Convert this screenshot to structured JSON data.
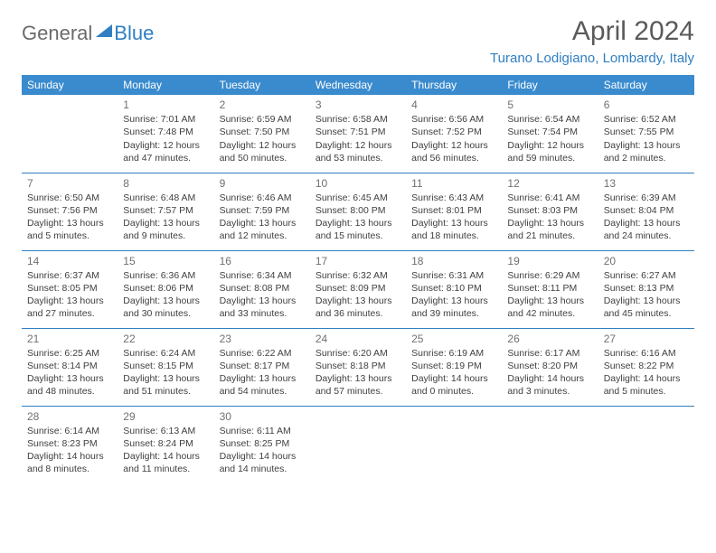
{
  "logo": {
    "part1": "General",
    "part2": "Blue"
  },
  "title": "April 2024",
  "location": "Turano Lodigiano, Lombardy, Italy",
  "colors": {
    "header_bg": "#3a8bce",
    "accent": "#2f7fc2",
    "text": "#3f3f3f",
    "muted": "#707070",
    "logo_gray": "#6b6b6b"
  },
  "weekdays": [
    "Sunday",
    "Monday",
    "Tuesday",
    "Wednesday",
    "Thursday",
    "Friday",
    "Saturday"
  ],
  "weeks": [
    [
      null,
      {
        "n": "1",
        "sr": "Sunrise: 7:01 AM",
        "ss": "Sunset: 7:48 PM",
        "d1": "Daylight: 12 hours",
        "d2": "and 47 minutes."
      },
      {
        "n": "2",
        "sr": "Sunrise: 6:59 AM",
        "ss": "Sunset: 7:50 PM",
        "d1": "Daylight: 12 hours",
        "d2": "and 50 minutes."
      },
      {
        "n": "3",
        "sr": "Sunrise: 6:58 AM",
        "ss": "Sunset: 7:51 PM",
        "d1": "Daylight: 12 hours",
        "d2": "and 53 minutes."
      },
      {
        "n": "4",
        "sr": "Sunrise: 6:56 AM",
        "ss": "Sunset: 7:52 PM",
        "d1": "Daylight: 12 hours",
        "d2": "and 56 minutes."
      },
      {
        "n": "5",
        "sr": "Sunrise: 6:54 AM",
        "ss": "Sunset: 7:54 PM",
        "d1": "Daylight: 12 hours",
        "d2": "and 59 minutes."
      },
      {
        "n": "6",
        "sr": "Sunrise: 6:52 AM",
        "ss": "Sunset: 7:55 PM",
        "d1": "Daylight: 13 hours",
        "d2": "and 2 minutes."
      }
    ],
    [
      {
        "n": "7",
        "sr": "Sunrise: 6:50 AM",
        "ss": "Sunset: 7:56 PM",
        "d1": "Daylight: 13 hours",
        "d2": "and 5 minutes."
      },
      {
        "n": "8",
        "sr": "Sunrise: 6:48 AM",
        "ss": "Sunset: 7:57 PM",
        "d1": "Daylight: 13 hours",
        "d2": "and 9 minutes."
      },
      {
        "n": "9",
        "sr": "Sunrise: 6:46 AM",
        "ss": "Sunset: 7:59 PM",
        "d1": "Daylight: 13 hours",
        "d2": "and 12 minutes."
      },
      {
        "n": "10",
        "sr": "Sunrise: 6:45 AM",
        "ss": "Sunset: 8:00 PM",
        "d1": "Daylight: 13 hours",
        "d2": "and 15 minutes."
      },
      {
        "n": "11",
        "sr": "Sunrise: 6:43 AM",
        "ss": "Sunset: 8:01 PM",
        "d1": "Daylight: 13 hours",
        "d2": "and 18 minutes."
      },
      {
        "n": "12",
        "sr": "Sunrise: 6:41 AM",
        "ss": "Sunset: 8:03 PM",
        "d1": "Daylight: 13 hours",
        "d2": "and 21 minutes."
      },
      {
        "n": "13",
        "sr": "Sunrise: 6:39 AM",
        "ss": "Sunset: 8:04 PM",
        "d1": "Daylight: 13 hours",
        "d2": "and 24 minutes."
      }
    ],
    [
      {
        "n": "14",
        "sr": "Sunrise: 6:37 AM",
        "ss": "Sunset: 8:05 PM",
        "d1": "Daylight: 13 hours",
        "d2": "and 27 minutes."
      },
      {
        "n": "15",
        "sr": "Sunrise: 6:36 AM",
        "ss": "Sunset: 8:06 PM",
        "d1": "Daylight: 13 hours",
        "d2": "and 30 minutes."
      },
      {
        "n": "16",
        "sr": "Sunrise: 6:34 AM",
        "ss": "Sunset: 8:08 PM",
        "d1": "Daylight: 13 hours",
        "d2": "and 33 minutes."
      },
      {
        "n": "17",
        "sr": "Sunrise: 6:32 AM",
        "ss": "Sunset: 8:09 PM",
        "d1": "Daylight: 13 hours",
        "d2": "and 36 minutes."
      },
      {
        "n": "18",
        "sr": "Sunrise: 6:31 AM",
        "ss": "Sunset: 8:10 PM",
        "d1": "Daylight: 13 hours",
        "d2": "and 39 minutes."
      },
      {
        "n": "19",
        "sr": "Sunrise: 6:29 AM",
        "ss": "Sunset: 8:11 PM",
        "d1": "Daylight: 13 hours",
        "d2": "and 42 minutes."
      },
      {
        "n": "20",
        "sr": "Sunrise: 6:27 AM",
        "ss": "Sunset: 8:13 PM",
        "d1": "Daylight: 13 hours",
        "d2": "and 45 minutes."
      }
    ],
    [
      {
        "n": "21",
        "sr": "Sunrise: 6:25 AM",
        "ss": "Sunset: 8:14 PM",
        "d1": "Daylight: 13 hours",
        "d2": "and 48 minutes."
      },
      {
        "n": "22",
        "sr": "Sunrise: 6:24 AM",
        "ss": "Sunset: 8:15 PM",
        "d1": "Daylight: 13 hours",
        "d2": "and 51 minutes."
      },
      {
        "n": "23",
        "sr": "Sunrise: 6:22 AM",
        "ss": "Sunset: 8:17 PM",
        "d1": "Daylight: 13 hours",
        "d2": "and 54 minutes."
      },
      {
        "n": "24",
        "sr": "Sunrise: 6:20 AM",
        "ss": "Sunset: 8:18 PM",
        "d1": "Daylight: 13 hours",
        "d2": "and 57 minutes."
      },
      {
        "n": "25",
        "sr": "Sunrise: 6:19 AM",
        "ss": "Sunset: 8:19 PM",
        "d1": "Daylight: 14 hours",
        "d2": "and 0 minutes."
      },
      {
        "n": "26",
        "sr": "Sunrise: 6:17 AM",
        "ss": "Sunset: 8:20 PM",
        "d1": "Daylight: 14 hours",
        "d2": "and 3 minutes."
      },
      {
        "n": "27",
        "sr": "Sunrise: 6:16 AM",
        "ss": "Sunset: 8:22 PM",
        "d1": "Daylight: 14 hours",
        "d2": "and 5 minutes."
      }
    ],
    [
      {
        "n": "28",
        "sr": "Sunrise: 6:14 AM",
        "ss": "Sunset: 8:23 PM",
        "d1": "Daylight: 14 hours",
        "d2": "and 8 minutes."
      },
      {
        "n": "29",
        "sr": "Sunrise: 6:13 AM",
        "ss": "Sunset: 8:24 PM",
        "d1": "Daylight: 14 hours",
        "d2": "and 11 minutes."
      },
      {
        "n": "30",
        "sr": "Sunrise: 6:11 AM",
        "ss": "Sunset: 8:25 PM",
        "d1": "Daylight: 14 hours",
        "d2": "and 14 minutes."
      },
      null,
      null,
      null,
      null
    ]
  ]
}
